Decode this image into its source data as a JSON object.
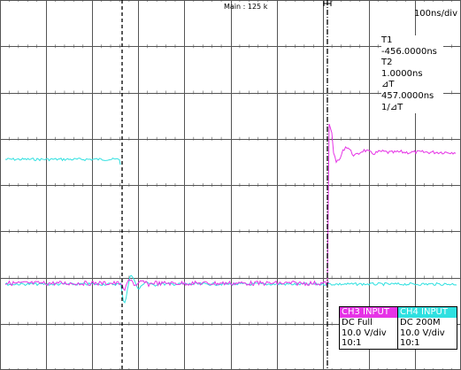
{
  "header": {
    "label": "Main : 125 k"
  },
  "timebase": {
    "value": "100ns/div"
  },
  "cursors": {
    "t1_label": "T1",
    "t1_value": "-456.0000ns",
    "t2_label": "T2",
    "t2_value": " 1.0000ns",
    "delta_label": "⊿T",
    "delta_value": " 457.0000ns",
    "inv_delta_label": "1/⊿T"
  },
  "channels": {
    "ch3": {
      "title": "CH3 INPUT",
      "coupling": "DC Full",
      "scale": "10.0 V/div",
      "probe": "10:1",
      "color": "#e633e6"
    },
    "ch4": {
      "title": "CH4 INPUT",
      "coupling": "DC 200M",
      "scale": "10.0 V/div",
      "probe": "10:1",
      "color": "#2ee0e0"
    }
  },
  "colors": {
    "grid": "#555555",
    "cursor": "#000000",
    "cyan_trace": "#2ee0e0",
    "magenta_trace": "#e633e6"
  }
}
